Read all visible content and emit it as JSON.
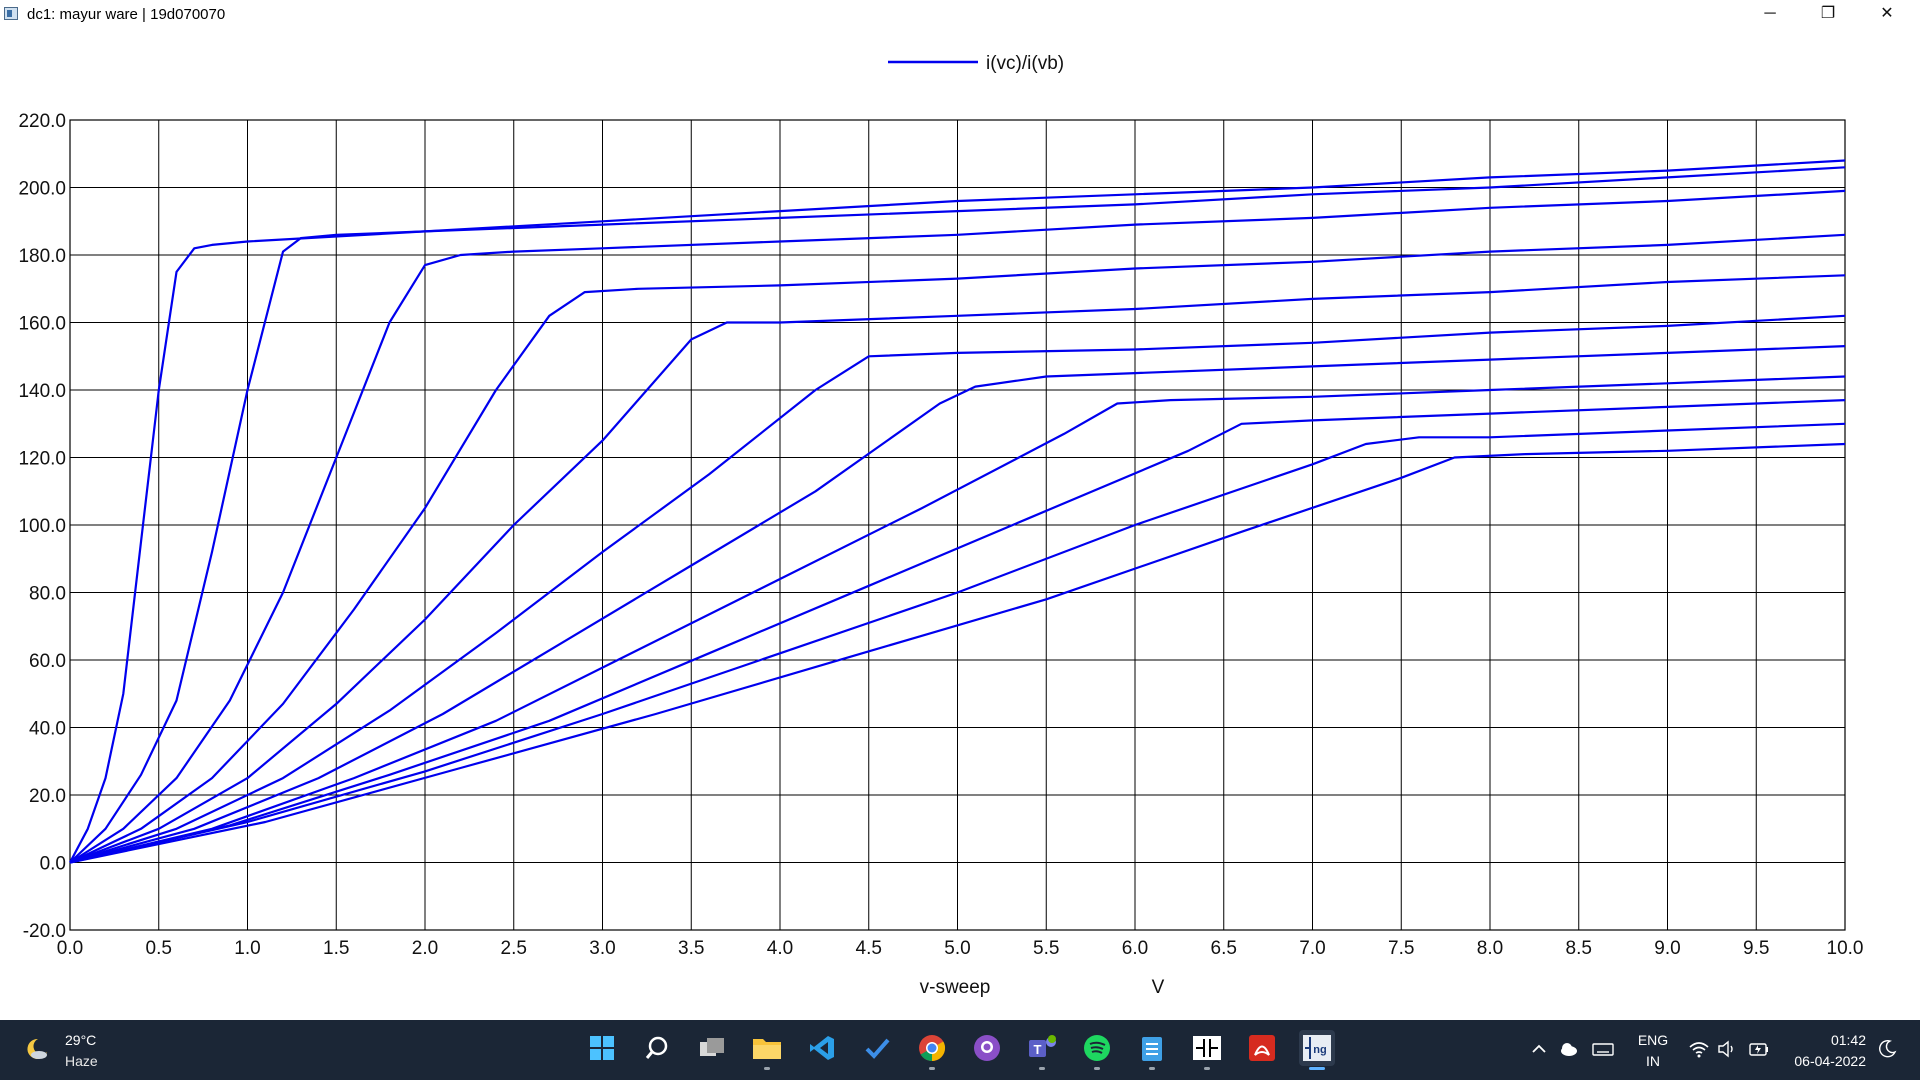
{
  "window": {
    "title": "dc1: mayur ware | 19d070070",
    "minimize_glyph": "─",
    "restore_glyph": "❐",
    "close_glyph": "✕"
  },
  "chart_data": {
    "type": "line",
    "title": "",
    "legend": [
      "i(vc)/i(vb)"
    ],
    "legend_position": "top-center",
    "xlabel": "v-sweep",
    "xunit": "V",
    "ylabel": "",
    "xlim": [
      0,
      10
    ],
    "ylim": [
      -20,
      220
    ],
    "xticks": [
      "0.0",
      "0.5",
      "1.0",
      "1.5",
      "2.0",
      "2.5",
      "3.0",
      "3.5",
      "4.0",
      "4.5",
      "5.0",
      "5.5",
      "6.0",
      "6.5",
      "7.0",
      "7.5",
      "8.0",
      "8.5",
      "9.0",
      "9.5",
      "10.0"
    ],
    "yticks": [
      "-20.0",
      "0.0",
      "20.0",
      "40.0",
      "60.0",
      "80.0",
      "100.0",
      "120.0",
      "140.0",
      "160.0",
      "180.0",
      "200.0",
      "220.0"
    ],
    "grid": true,
    "line_color": "#0000ee",
    "series": [
      {
        "x": [
          0,
          0.1,
          0.2,
          0.3,
          0.4,
          0.5,
          0.6,
          0.7,
          0.8,
          1,
          2,
          3,
          4,
          5,
          6,
          7,
          8,
          9,
          10
        ],
        "y": [
          0,
          10,
          25,
          50,
          95,
          140,
          175,
          182,
          183,
          184,
          187,
          190,
          193,
          196,
          198,
          200,
          203,
          205,
          208
        ]
      },
      {
        "x": [
          0,
          0.2,
          0.4,
          0.6,
          0.8,
          1.0,
          1.2,
          1.3,
          1.5,
          2,
          3,
          4,
          5,
          6,
          7,
          8,
          9,
          10
        ],
        "y": [
          0,
          10,
          26,
          48,
          92,
          140,
          181,
          185,
          186,
          187,
          189,
          191,
          193,
          195,
          198,
          200,
          203,
          206
        ]
      },
      {
        "x": [
          0,
          0.3,
          0.6,
          0.9,
          1.2,
          1.5,
          1.8,
          2.0,
          2.2,
          2.5,
          3,
          4,
          5,
          6,
          7,
          8,
          9,
          10
        ],
        "y": [
          0,
          10,
          25,
          48,
          80,
          120,
          160,
          177,
          180,
          181,
          182,
          184,
          186,
          189,
          191,
          194,
          196,
          199
        ]
      },
      {
        "x": [
          0,
          0.4,
          0.8,
          1.2,
          1.6,
          2.0,
          2.4,
          2.7,
          2.9,
          3.2,
          4,
          5,
          6,
          7,
          8,
          9,
          10
        ],
        "y": [
          0,
          10,
          25,
          47,
          75,
          105,
          140,
          162,
          169,
          170,
          171,
          173,
          176,
          178,
          181,
          183,
          186
        ]
      },
      {
        "x": [
          0,
          0.5,
          1.0,
          1.5,
          2.0,
          2.5,
          3.0,
          3.5,
          3.7,
          4,
          5,
          6,
          7,
          8,
          9,
          10
        ],
        "y": [
          0,
          10,
          25,
          47,
          72,
          100,
          125,
          155,
          160,
          160,
          162,
          164,
          167,
          169,
          172,
          174
        ]
      },
      {
        "x": [
          0,
          0.6,
          1.2,
          1.8,
          2.4,
          3.0,
          3.6,
          4.2,
          4.5,
          5,
          6,
          7,
          8,
          9,
          10
        ],
        "y": [
          0,
          10,
          25,
          45,
          68,
          92,
          115,
          140,
          150,
          151,
          152,
          154,
          157,
          159,
          162
        ]
      },
      {
        "x": [
          0,
          0.7,
          1.4,
          2.1,
          2.8,
          3.5,
          4.2,
          4.9,
          5.1,
          5.5,
          6,
          7,
          8,
          9,
          10
        ],
        "y": [
          0,
          10,
          25,
          44,
          66,
          88,
          110,
          136,
          141,
          144,
          145,
          147,
          149,
          151,
          153
        ]
      },
      {
        "x": [
          0,
          0.8,
          1.6,
          2.4,
          3.2,
          4.0,
          4.8,
          5.6,
          5.9,
          6.2,
          7,
          8,
          9,
          10
        ],
        "y": [
          0,
          10,
          25,
          42,
          63,
          84,
          105,
          127,
          136,
          137,
          138,
          140,
          142,
          144
        ]
      },
      {
        "x": [
          0,
          0.9,
          1.8,
          2.7,
          3.6,
          4.5,
          5.4,
          6.3,
          6.6,
          7,
          8,
          9,
          10
        ],
        "y": [
          0,
          11,
          26,
          42,
          62,
          82,
          102,
          122,
          130,
          131,
          133,
          135,
          137
        ]
      },
      {
        "x": [
          0,
          1.0,
          2.0,
          3.0,
          4.0,
          5.0,
          6.0,
          7.0,
          7.3,
          7.6,
          8,
          9,
          10
        ],
        "y": [
          0,
          12,
          27,
          44,
          62,
          80,
          100,
          118,
          124,
          126,
          126,
          128,
          130
        ]
      },
      {
        "x": [
          0,
          1.1,
          2.2,
          3.3,
          4.4,
          5.5,
          6.6,
          7.5,
          7.8,
          8.2,
          9,
          10
        ],
        "y": [
          0,
          12,
          28,
          44,
          61,
          78,
          98,
          114,
          120,
          121,
          122,
          124
        ]
      }
    ]
  },
  "taskbar": {
    "weather": {
      "temp": "29°C",
      "desc": "Haze",
      "icon": "moon-cloud-icon"
    },
    "apps": [
      {
        "name": "windows-start-icon"
      },
      {
        "name": "search-icon"
      },
      {
        "name": "task-view-icon"
      },
      {
        "name": "file-explorer-icon"
      },
      {
        "name": "vscode-icon"
      },
      {
        "name": "todo-icon"
      },
      {
        "name": "chrome-icon"
      },
      {
        "name": "github-desktop-icon"
      },
      {
        "name": "teams-icon"
      },
      {
        "name": "spotify-icon"
      },
      {
        "name": "notepad-icon"
      },
      {
        "name": "circuit-app-icon"
      },
      {
        "name": "pdf-reader-icon"
      },
      {
        "name": "ngspice-icon"
      }
    ],
    "tray": {
      "lang_line1": "ENG",
      "lang_line2": "IN",
      "time": "01:42",
      "date": "06-04-2022"
    }
  }
}
